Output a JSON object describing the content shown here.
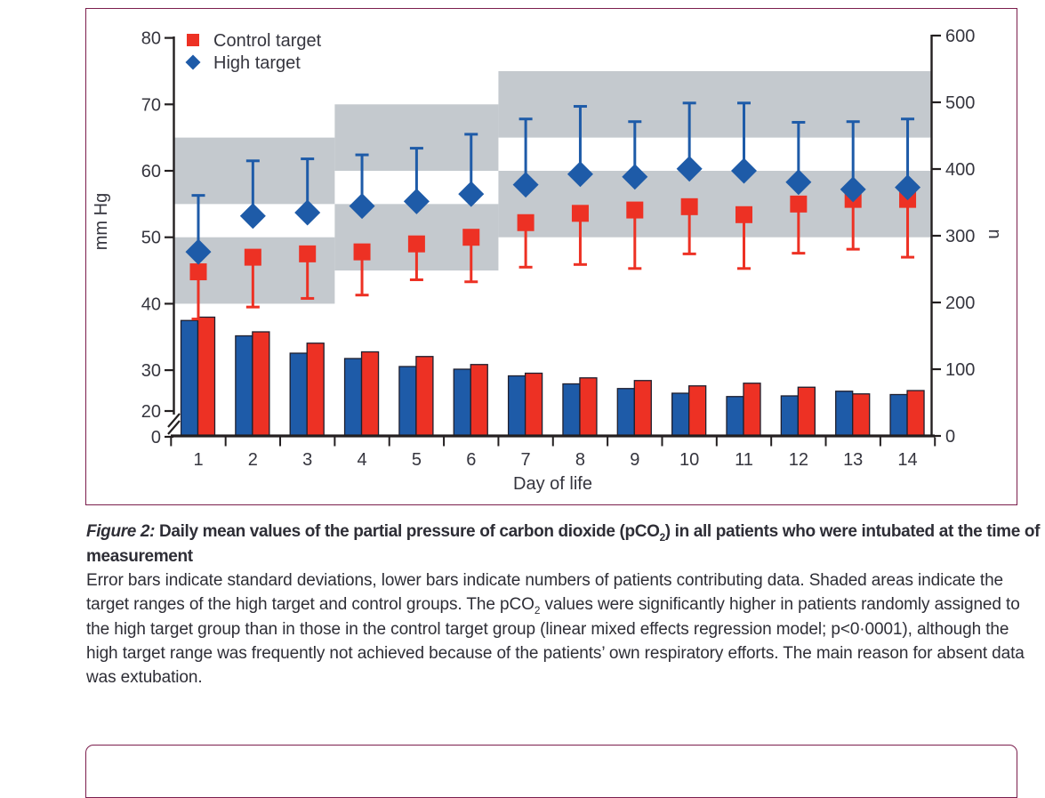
{
  "caption": {
    "figure_label": "Figure 2:",
    "title_before_sub": " Daily mean values of the partial pressure of carbon dioxide (pCO",
    "title_sub": "2",
    "title_after_sub": ") in all patients who were intubated at the time of measurement",
    "body_before_sub": "Error bars indicate standard deviations, lower bars indicate numbers of patients contributing data. Shaded areas indicate the target ranges of the high target and control groups. The pCO",
    "body_sub": "2",
    "body_after_sub": " values were significantly higher in patients randomly assigned to the high target group than in those in the control target group (linear mixed effects regression model; p<0·0001), although the high target range was frequently not achieved because of the patients’ own respiratory efforts. The main reason for absent data was extubation."
  },
  "colors": {
    "control_red": "#ED3124",
    "high_blue": "#1E5BA8",
    "band_gray": "#C4C9CE",
    "panel_border_maroon": "#7B1E4D",
    "axis_black": "#231F20",
    "text_dark": "#35353E"
  },
  "chart_data": {
    "type": "combo-scatter-errorbar-bar",
    "x_values": [
      1,
      2,
      3,
      4,
      5,
      6,
      7,
      8,
      9,
      10,
      11,
      12,
      13,
      14
    ],
    "xlabel": "Day of life",
    "left_axis": {
      "label": "mm Hg",
      "ticks": [
        0,
        20,
        30,
        40,
        50,
        60,
        70,
        80
      ],
      "range_shown": [
        0,
        80
      ],
      "axis_break_between": [
        0,
        20
      ]
    },
    "right_axis": {
      "label": "n",
      "ticks": [
        0,
        100,
        200,
        300,
        400,
        500,
        600
      ],
      "range": [
        0,
        600
      ]
    },
    "series": [
      {
        "name": "Control target",
        "marker": "square",
        "color": "#ED3124",
        "pco2_mean": [
          44.8,
          47.0,
          47.5,
          47.8,
          49.0,
          50.0,
          52.2,
          53.6,
          54.1,
          54.6,
          53.4,
          55.0,
          55.7,
          55.7
        ],
        "sd_whisker_end": [
          37.7,
          39.5,
          40.8,
          41.3,
          43.6,
          43.3,
          45.5,
          45.9,
          45.3,
          47.5,
          45.3,
          47.6,
          48.2,
          47.0
        ],
        "whisker_direction": "down",
        "n_patients": [
          178,
          156,
          139,
          126,
          119,
          107,
          94,
          87,
          83,
          75,
          79,
          73,
          63,
          68
        ]
      },
      {
        "name": "High target",
        "marker": "diamond",
        "color": "#1E5BA8",
        "pco2_mean": [
          47.8,
          53.2,
          53.7,
          54.7,
          55.4,
          56.5,
          57.9,
          59.5,
          59.1,
          60.3,
          60.0,
          58.3,
          57.2,
          57.5
        ],
        "sd_whisker_end": [
          56.3,
          61.5,
          61.8,
          62.4,
          63.4,
          65.5,
          67.8,
          69.7,
          67.4,
          70.2,
          70.2,
          67.3,
          67.4,
          67.8
        ],
        "whisker_direction": "up",
        "n_patients": [
          173,
          150,
          124,
          116,
          104,
          100,
          90,
          78,
          71,
          64,
          59,
          60,
          67,
          62
        ]
      }
    ],
    "target_bands": [
      {
        "days": "1-3",
        "day_start": 1,
        "day_end": 3,
        "control_range": [
          40,
          50
        ],
        "high_range": [
          55,
          65
        ]
      },
      {
        "days": "4-6",
        "day_start": 4,
        "day_end": 6,
        "control_range": [
          45,
          55
        ],
        "high_range": [
          60,
          70
        ]
      },
      {
        "days": "7-14",
        "day_start": 7,
        "day_end": 14,
        "control_range": [
          50,
          60
        ],
        "high_range": [
          65,
          75
        ]
      }
    ],
    "band_color": "#C4C9CE",
    "legend": [
      {
        "label": "Control target"
      },
      {
        "label": "High target"
      }
    ],
    "legend_position": "top-left-inside"
  }
}
